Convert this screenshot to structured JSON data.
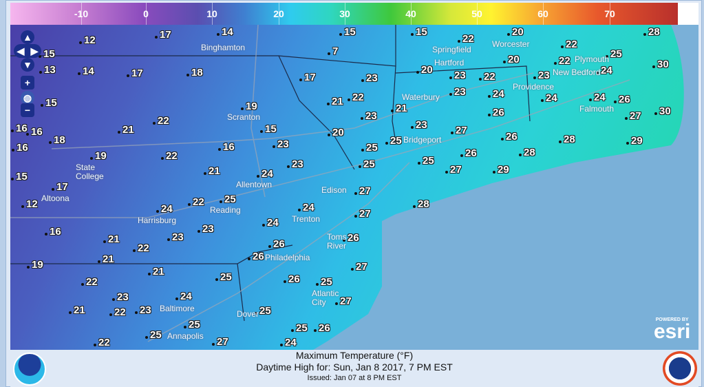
{
  "legend": {
    "title": "",
    "ticks": [
      "-10",
      "0",
      "10",
      "20",
      "30",
      "40",
      "50",
      "60",
      "70"
    ],
    "colors": {
      "cold": "#f6b6ee",
      "mid": "#2fcbee",
      "warm": "#b8302c"
    }
  },
  "map": {
    "controls": {
      "zoom_in": "+",
      "zoom_out": "−",
      "pan": "pan-arrows",
      "globe": "globe-icon"
    },
    "temperatures": [
      12,
      17,
      14,
      15,
      15,
      22,
      20,
      28,
      15,
      7,
      22,
      25,
      30,
      13,
      14,
      17,
      18,
      17,
      23,
      20,
      23,
      22,
      20,
      23,
      22,
      24,
      15,
      19,
      21,
      22,
      23,
      24,
      24,
      24,
      26,
      21,
      23,
      26,
      27,
      30,
      16,
      16,
      21,
      22,
      15,
      20,
      23,
      27,
      16,
      18,
      19,
      22,
      16,
      23,
      25,
      25,
      26,
      28,
      29,
      26,
      28,
      15,
      21,
      24,
      23,
      25,
      25,
      27,
      29,
      17,
      27,
      12,
      24,
      22,
      25,
      24,
      28,
      27,
      24,
      23,
      16,
      21,
      22,
      23,
      26,
      26,
      26,
      19,
      21,
      21,
      27,
      25,
      22,
      26,
      25,
      23,
      24,
      27,
      21,
      22,
      23,
      25,
      25,
      26,
      25,
      25,
      27,
      22,
      24
    ],
    "cities": [
      "Binghamton",
      "Scranton",
      "State\nCollege",
      "Altoona",
      "Harrisburg",
      "Reading",
      "Allentown",
      "Edison",
      "Trenton",
      "Philadelphia",
      "Toms\nRiver",
      "Atlantic\nCity",
      "Baltimore",
      "Annapolis",
      "Dover",
      "Hartford",
      "Waterbury",
      "Bridgeport",
      "Springfield",
      "Worcester",
      "Providence",
      "New Bedford",
      "Plymouth",
      "Falmouth"
    ],
    "attribution": {
      "powered_by": "POWERED BY",
      "brand": "esri"
    }
  },
  "footer": {
    "title": "Maximum Temperature (°F)",
    "subtitle": "Daytime High for: Sun, Jan   8 2017,   7 PM EST",
    "issued": "Issued: Jan 07 at 8 PM EST",
    "logo_left": "NOAA",
    "logo_right": "NATIONAL WEATHER SERVICE"
  }
}
